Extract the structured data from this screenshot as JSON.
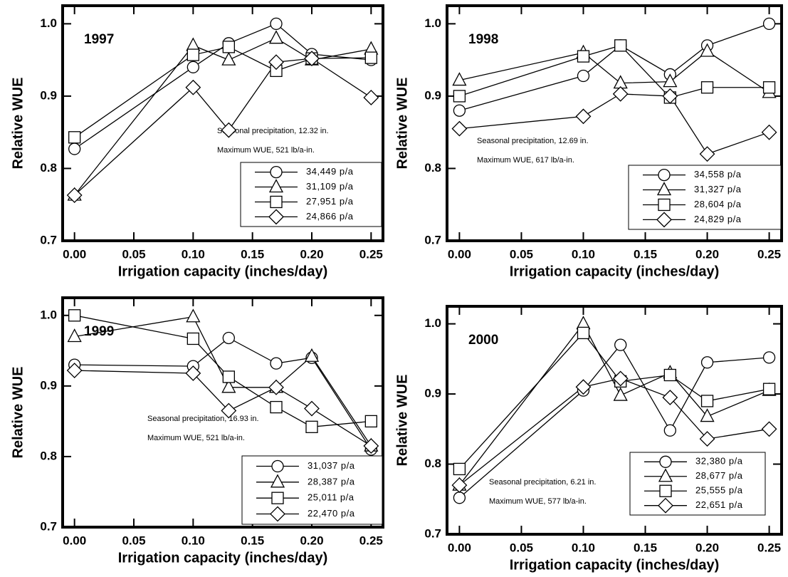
{
  "chart_data": [
    {
      "type": "line",
      "title": "1997",
      "annotations": [
        "Seasonal precipitation, 12.32 in.",
        "Maximum WUE, 521 lb/a-in."
      ],
      "x_label": "Irrigation capacity (inches/day)",
      "y_label": "Relative WUE",
      "x": [
        0,
        0.1,
        0.13,
        0.17,
        0.2,
        0.25
      ],
      "xlim": [
        -0.01,
        0.26
      ],
      "ylim": [
        0.7,
        1.025
      ],
      "xticks": [
        {
          "value": 0,
          "label": "0.00"
        },
        0.05,
        {
          "value": 0.1,
          "label": "0.10"
        },
        0.15,
        {
          "value": 0.2,
          "label": "0.20"
        },
        0.25
      ],
      "yticks": [
        0.7,
        0.8,
        0.9,
        {
          "value": 1,
          "label": "1.0"
        }
      ],
      "legend": "lower right",
      "series": [
        {
          "name": "34,449 p/a",
          "marker": "circle",
          "color": "#000000",
          "values": [
            0.827,
            0.94,
            0.973,
            1.0,
            0.958,
            0.95
          ]
        },
        {
          "name": "31,109 p/a",
          "marker": "triangle",
          "color": "#000000",
          "values": [
            0.763,
            0.97,
            0.95,
            0.98,
            0.95,
            0.965
          ]
        },
        {
          "name": "27,951 p/a",
          "marker": "square",
          "color": "#000000",
          "values": [
            0.843,
            0.957,
            0.968,
            0.935,
            0.952,
            0.953
          ]
        },
        {
          "name": "24,866 p/a",
          "marker": "diamond",
          "color": "#000000",
          "values": [
            0.763,
            0.912,
            0.853,
            0.947,
            0.952,
            0.898
          ]
        }
      ]
    },
    {
      "type": "line",
      "title": "1998",
      "annotations": [
        "Seasonal precipitation, 12.69 in.",
        "Maximum WUE, 617 lb/a-in."
      ],
      "x_label": "Irrigation capacity (inches/day)",
      "y_label": "Relative WUE",
      "x": [
        0,
        0.1,
        0.13,
        0.17,
        0.2,
        0.25
      ],
      "xlim": [
        -0.01,
        0.26
      ],
      "ylim": [
        0.7,
        1.025
      ],
      "xticks": [
        {
          "value": 0,
          "label": "0.00"
        },
        0.05,
        {
          "value": 0.1,
          "label": "0.10"
        },
        0.15,
        {
          "value": 0.2,
          "label": "0.20"
        },
        0.25
      ],
      "yticks": [
        0.7,
        0.8,
        0.9,
        {
          "value": 1,
          "label": "1.0"
        }
      ],
      "legend": "lower right",
      "series": [
        {
          "name": "34,558 p/a",
          "marker": "circle",
          "color": "#000000",
          "values": [
            0.88,
            0.928,
            0.97,
            0.93,
            0.97,
            1.0
          ]
        },
        {
          "name": "31,327 p/a",
          "marker": "triangle",
          "color": "#000000",
          "values": [
            0.922,
            0.96,
            0.918,
            0.92,
            0.962,
            0.905
          ]
        },
        {
          "name": "28,604 p/a",
          "marker": "square",
          "color": "#000000",
          "values": [
            0.9,
            0.955,
            0.97,
            0.898,
            0.912,
            0.912
          ]
        },
        {
          "name": "24,829 p/a",
          "marker": "diamond",
          "color": "#000000",
          "values": [
            0.855,
            0.872,
            0.903,
            0.9,
            0.82,
            0.85
          ]
        }
      ]
    },
    {
      "type": "line",
      "title": "1999",
      "annotations": [
        "Seasonal precipitation, 16.93 in.",
        "Maximum WUE, 521 lb/a-in."
      ],
      "x_label": "Irrigation capacity (inches/day)",
      "y_label": "Relative WUE",
      "x": [
        0,
        0.1,
        0.13,
        0.17,
        0.2,
        0.25
      ],
      "xlim": [
        -0.01,
        0.26
      ],
      "ylim": [
        0.7,
        1.025
      ],
      "xticks": [
        {
          "value": 0,
          "label": "0.00"
        },
        0.05,
        {
          "value": 0.1,
          "label": "0.10"
        },
        0.15,
        {
          "value": 0.2,
          "label": "0.20"
        },
        0.25
      ],
      "yticks": [
        0.7,
        0.8,
        0.9,
        {
          "value": 1,
          "label": "1.0"
        }
      ],
      "legend": "lower right",
      "series": [
        {
          "name": "31,037 p/a",
          "marker": "circle",
          "color": "#000000",
          "values": [
            0.93,
            0.928,
            0.968,
            0.932,
            0.94,
            0.81
          ]
        },
        {
          "name": "28,387 p/a",
          "marker": "triangle",
          "color": "#000000",
          "values": [
            0.97,
            0.998,
            0.898,
            0.898,
            0.942,
            0.815
          ]
        },
        {
          "name": "25,011 p/a",
          "marker": "square",
          "color": "#000000",
          "values": [
            1.0,
            0.967,
            0.913,
            0.87,
            0.842,
            0.85
          ]
        },
        {
          "name": "22,470 p/a",
          "marker": "diamond",
          "color": "#000000",
          "values": [
            0.922,
            0.918,
            0.865,
            0.898,
            0.868,
            0.815
          ]
        }
      ]
    },
    {
      "type": "line",
      "title": "2000",
      "annotations": [
        "Seasonal precipitation, 6.21 in.",
        "Maximum WUE, 577 lb/a-in."
      ],
      "x_label": "Irrigation capacity (inches/day)",
      "y_label": "Relative WUE",
      "x": [
        0,
        0.1,
        0.13,
        0.17,
        0.2,
        0.25
      ],
      "xlim": [
        -0.01,
        0.26
      ],
      "ylim": [
        0.7,
        1.025
      ],
      "xticks": [
        {
          "value": 0,
          "label": "0.00"
        },
        0.05,
        {
          "value": 0.1,
          "label": "0.10"
        },
        0.15,
        {
          "value": 0.2,
          "label": "0.20"
        },
        0.25
      ],
      "yticks": [
        0.7,
        0.8,
        0.9,
        {
          "value": 1,
          "label": "1.0"
        }
      ],
      "legend": "lower right",
      "series": [
        {
          "name": "32,380 p/a",
          "marker": "circle",
          "color": "#000000",
          "values": [
            0.752,
            0.905,
            0.97,
            0.848,
            0.945,
            0.952
          ]
        },
        {
          "name": "28,677 p/a",
          "marker": "triangle",
          "color": "#000000",
          "values": [
            0.77,
            1.0,
            0.898,
            0.93,
            0.868,
            0.905
          ]
        },
        {
          "name": "25,555 p/a",
          "marker": "square",
          "color": "#000000",
          "values": [
            0.793,
            0.987,
            0.918,
            0.927,
            0.89,
            0.907
          ]
        },
        {
          "name": "22,651 p/a",
          "marker": "diamond",
          "color": "#000000",
          "values": [
            0.77,
            0.91,
            0.922,
            0.895,
            0.836,
            0.85
          ]
        }
      ]
    }
  ]
}
